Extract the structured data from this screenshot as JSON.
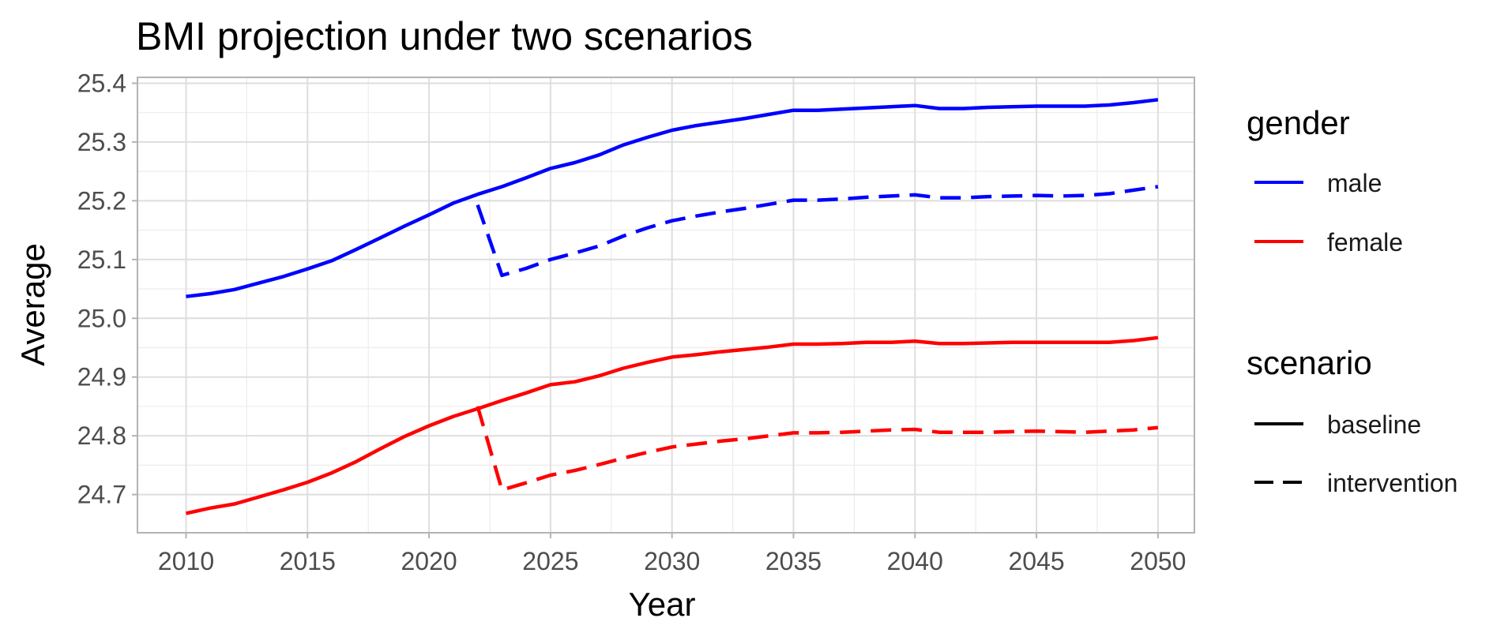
{
  "chart_data": {
    "type": "line",
    "title": "BMI  projection under two scenarios",
    "xlabel": "Year",
    "ylabel": "Average",
    "xlim": [
      2008,
      2051.5
    ],
    "ylim": [
      24.635,
      25.41
    ],
    "x_ticks": [
      "2010",
      "2015",
      "2020",
      "2025",
      "2030",
      "2035",
      "2040",
      "2045",
      "2050"
    ],
    "y_ticks": [
      "24.7",
      "24.8",
      "24.9",
      "25.0",
      "25.1",
      "25.2",
      "25.3",
      "25.4"
    ],
    "grid": true,
    "legend_position": "right",
    "legends": [
      {
        "title": "gender",
        "items": [
          {
            "label": "male",
            "color": "#0000ff"
          },
          {
            "label": "female",
            "color": "#ff0000"
          }
        ]
      },
      {
        "title": "scenario",
        "items": [
          {
            "label": "baseline",
            "linetype": "solid"
          },
          {
            "label": "intervention",
            "linetype": "dashed"
          }
        ]
      }
    ],
    "series": [
      {
        "gender": "male",
        "scenario": "baseline",
        "color": "#0000ff",
        "linetype": "solid",
        "x": [
          2010,
          2011,
          2012,
          2013,
          2014,
          2015,
          2016,
          2017,
          2018,
          2019,
          2020,
          2021,
          2022,
          2023,
          2024,
          2025,
          2026,
          2027,
          2028,
          2029,
          2030,
          2031,
          2032,
          2033,
          2034,
          2035,
          2036,
          2037,
          2038,
          2039,
          2040,
          2041,
          2042,
          2043,
          2044,
          2045,
          2046,
          2047,
          2048,
          2049,
          2050
        ],
        "values": [
          25.037,
          25.042,
          25.049,
          25.06,
          25.071,
          25.084,
          25.098,
          25.117,
          25.137,
          25.157,
          25.176,
          25.196,
          25.211,
          25.224,
          25.239,
          25.255,
          25.265,
          25.278,
          25.295,
          25.308,
          25.32,
          25.328,
          25.334,
          25.34,
          25.347,
          25.354,
          25.354,
          25.356,
          25.358,
          25.36,
          25.362,
          25.357,
          25.357,
          25.359,
          25.36,
          25.361,
          25.361,
          25.361,
          25.363,
          25.367,
          25.372
        ]
      },
      {
        "gender": "male",
        "scenario": "intervention",
        "color": "#0000ff",
        "linetype": "dashed",
        "x": [
          2022,
          2023,
          2024,
          2025,
          2026,
          2027,
          2028,
          2029,
          2030,
          2031,
          2032,
          2033,
          2034,
          2035,
          2036,
          2037,
          2038,
          2039,
          2040,
          2041,
          2042,
          2043,
          2044,
          2045,
          2046,
          2047,
          2048,
          2049,
          2050
        ],
        "values": [
          25.193,
          25.073,
          25.085,
          25.1,
          25.111,
          25.123,
          25.14,
          25.154,
          25.166,
          25.174,
          25.181,
          25.187,
          25.194,
          25.201,
          25.201,
          25.203,
          25.206,
          25.208,
          25.21,
          25.205,
          25.205,
          25.207,
          25.208,
          25.209,
          25.208,
          25.209,
          25.212,
          25.218,
          25.224
        ]
      },
      {
        "gender": "female",
        "scenario": "baseline",
        "color": "#ff0000",
        "linetype": "solid",
        "x": [
          2010,
          2011,
          2012,
          2013,
          2014,
          2015,
          2016,
          2017,
          2018,
          2019,
          2020,
          2021,
          2022,
          2023,
          2024,
          2025,
          2026,
          2027,
          2028,
          2029,
          2030,
          2031,
          2032,
          2033,
          2034,
          2035,
          2036,
          2037,
          2038,
          2039,
          2040,
          2041,
          2042,
          2043,
          2044,
          2045,
          2046,
          2047,
          2048,
          2049,
          2050
        ],
        "values": [
          24.668,
          24.677,
          24.684,
          24.696,
          24.708,
          24.721,
          24.737,
          24.756,
          24.778,
          24.799,
          24.817,
          24.833,
          24.846,
          24.86,
          24.873,
          24.887,
          24.892,
          24.902,
          24.915,
          24.925,
          24.934,
          24.938,
          24.943,
          24.947,
          24.951,
          24.956,
          24.956,
          24.957,
          24.959,
          24.959,
          24.961,
          24.957,
          24.957,
          24.958,
          24.959,
          24.959,
          24.959,
          24.959,
          24.959,
          24.962,
          24.967
        ]
      },
      {
        "gender": "female",
        "scenario": "intervention",
        "color": "#ff0000",
        "linetype": "dashed",
        "x": [
          2022,
          2023,
          2024,
          2025,
          2026,
          2027,
          2028,
          2029,
          2030,
          2031,
          2032,
          2033,
          2034,
          2035,
          2036,
          2037,
          2038,
          2039,
          2040,
          2041,
          2042,
          2043,
          2044,
          2045,
          2046,
          2047,
          2048,
          2049,
          2050
        ],
        "values": [
          24.85,
          24.708,
          24.72,
          24.733,
          24.741,
          24.751,
          24.762,
          24.772,
          24.781,
          24.786,
          24.791,
          24.795,
          24.8,
          24.805,
          24.805,
          24.806,
          24.808,
          24.81,
          24.811,
          24.806,
          24.806,
          24.806,
          24.807,
          24.808,
          24.807,
          24.806,
          24.808,
          24.81,
          24.814
        ]
      }
    ]
  }
}
